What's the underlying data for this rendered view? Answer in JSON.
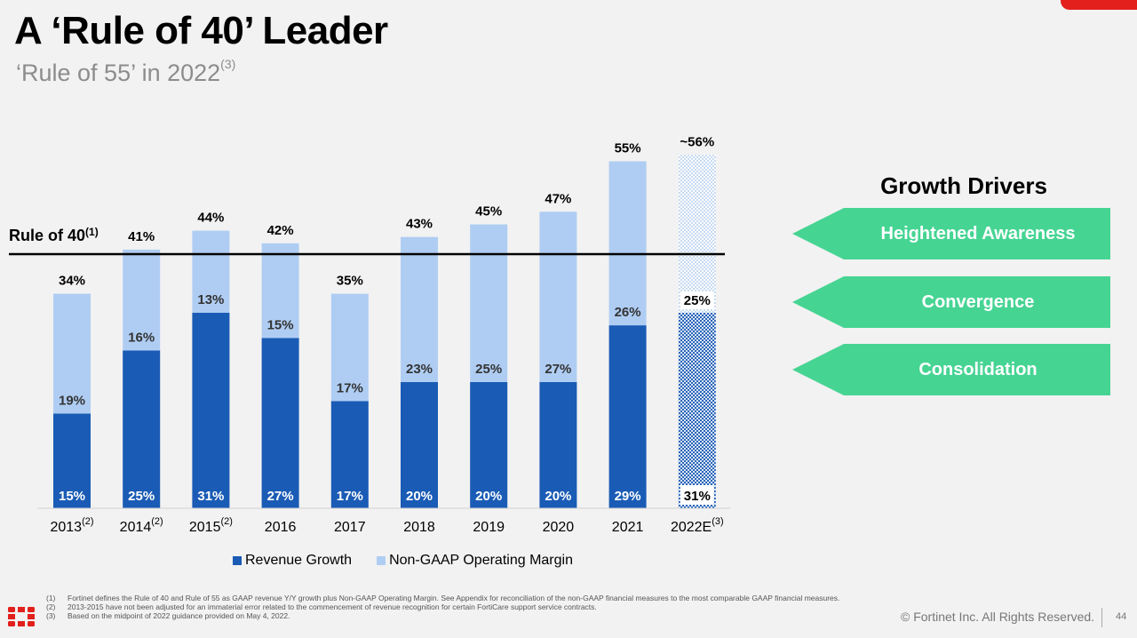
{
  "title": "A ‘Rule of 40’ Leader",
  "subtitle": "‘Rule of 55’ in 2022",
  "subtitle_note": "(3)",
  "colors": {
    "revenue": "#1a5bb5",
    "margin": "#afcdf3",
    "driver": "#46d493",
    "brand_red": "#e3201b"
  },
  "chart_data": {
    "type": "bar",
    "stacked": true,
    "categories": [
      "2013",
      "2014",
      "2015",
      "2016",
      "2017",
      "2018",
      "2019",
      "2020",
      "2021",
      "2022E"
    ],
    "category_notes": [
      "(2)",
      "(2)",
      "(2)",
      "",
      "",
      "",
      "",
      "",
      "",
      "(3)"
    ],
    "series": [
      {
        "name": "Revenue Growth",
        "values": [
          15,
          25,
          31,
          27,
          17,
          20,
          20,
          20,
          29,
          31
        ],
        "labels": [
          "15%",
          "25%",
          "31%",
          "27%",
          "17%",
          "20%",
          "20%",
          "20%",
          "29%",
          "31%"
        ]
      },
      {
        "name": "Non-GAAP Operating Margin",
        "values": [
          19,
          16,
          13,
          15,
          17,
          23,
          25,
          27,
          26,
          25
        ],
        "labels": [
          "19%",
          "16%",
          "13%",
          "15%",
          "17%",
          "23%",
          "25%",
          "27%",
          "26%",
          "25%"
        ]
      }
    ],
    "totals": [
      34,
      41,
      44,
      42,
      35,
      43,
      45,
      47,
      55,
      56
    ],
    "total_labels": [
      "34%",
      "41%",
      "44%",
      "42%",
      "35%",
      "43%",
      "45%",
      "47%",
      "55%",
      "~56%"
    ],
    "estimate_index": 9,
    "reference_line": {
      "value": 40,
      "label": "Rule of 40",
      "note": "(1)"
    },
    "ylim": [
      0,
      60
    ]
  },
  "growth_drivers": {
    "title": "Growth Drivers",
    "items": [
      "Heightened Awareness",
      "Convergence",
      "Consolidation"
    ]
  },
  "footnotes": [
    {
      "num": "(1)",
      "text": "Fortinet defines the Rule of 40 and Rule of 55 as GAAP revenue Y/Y growth plus Non-GAAP Operating Margin. See Appendix for reconciliation of the non-GAAP financial measures to the most comparable GAAP financial measures."
    },
    {
      "num": "(2)",
      "text": "2013-2015 have not been adjusted for an immaterial error related to the commencement of revenue recognition for certain FortiCare support service contracts."
    },
    {
      "num": "(3)",
      "text": "Based on the midpoint of 2022 guidance provided on May 4, 2022."
    }
  ],
  "copyright": "© Fortinet Inc. All Rights Reserved.",
  "page_number": "44"
}
